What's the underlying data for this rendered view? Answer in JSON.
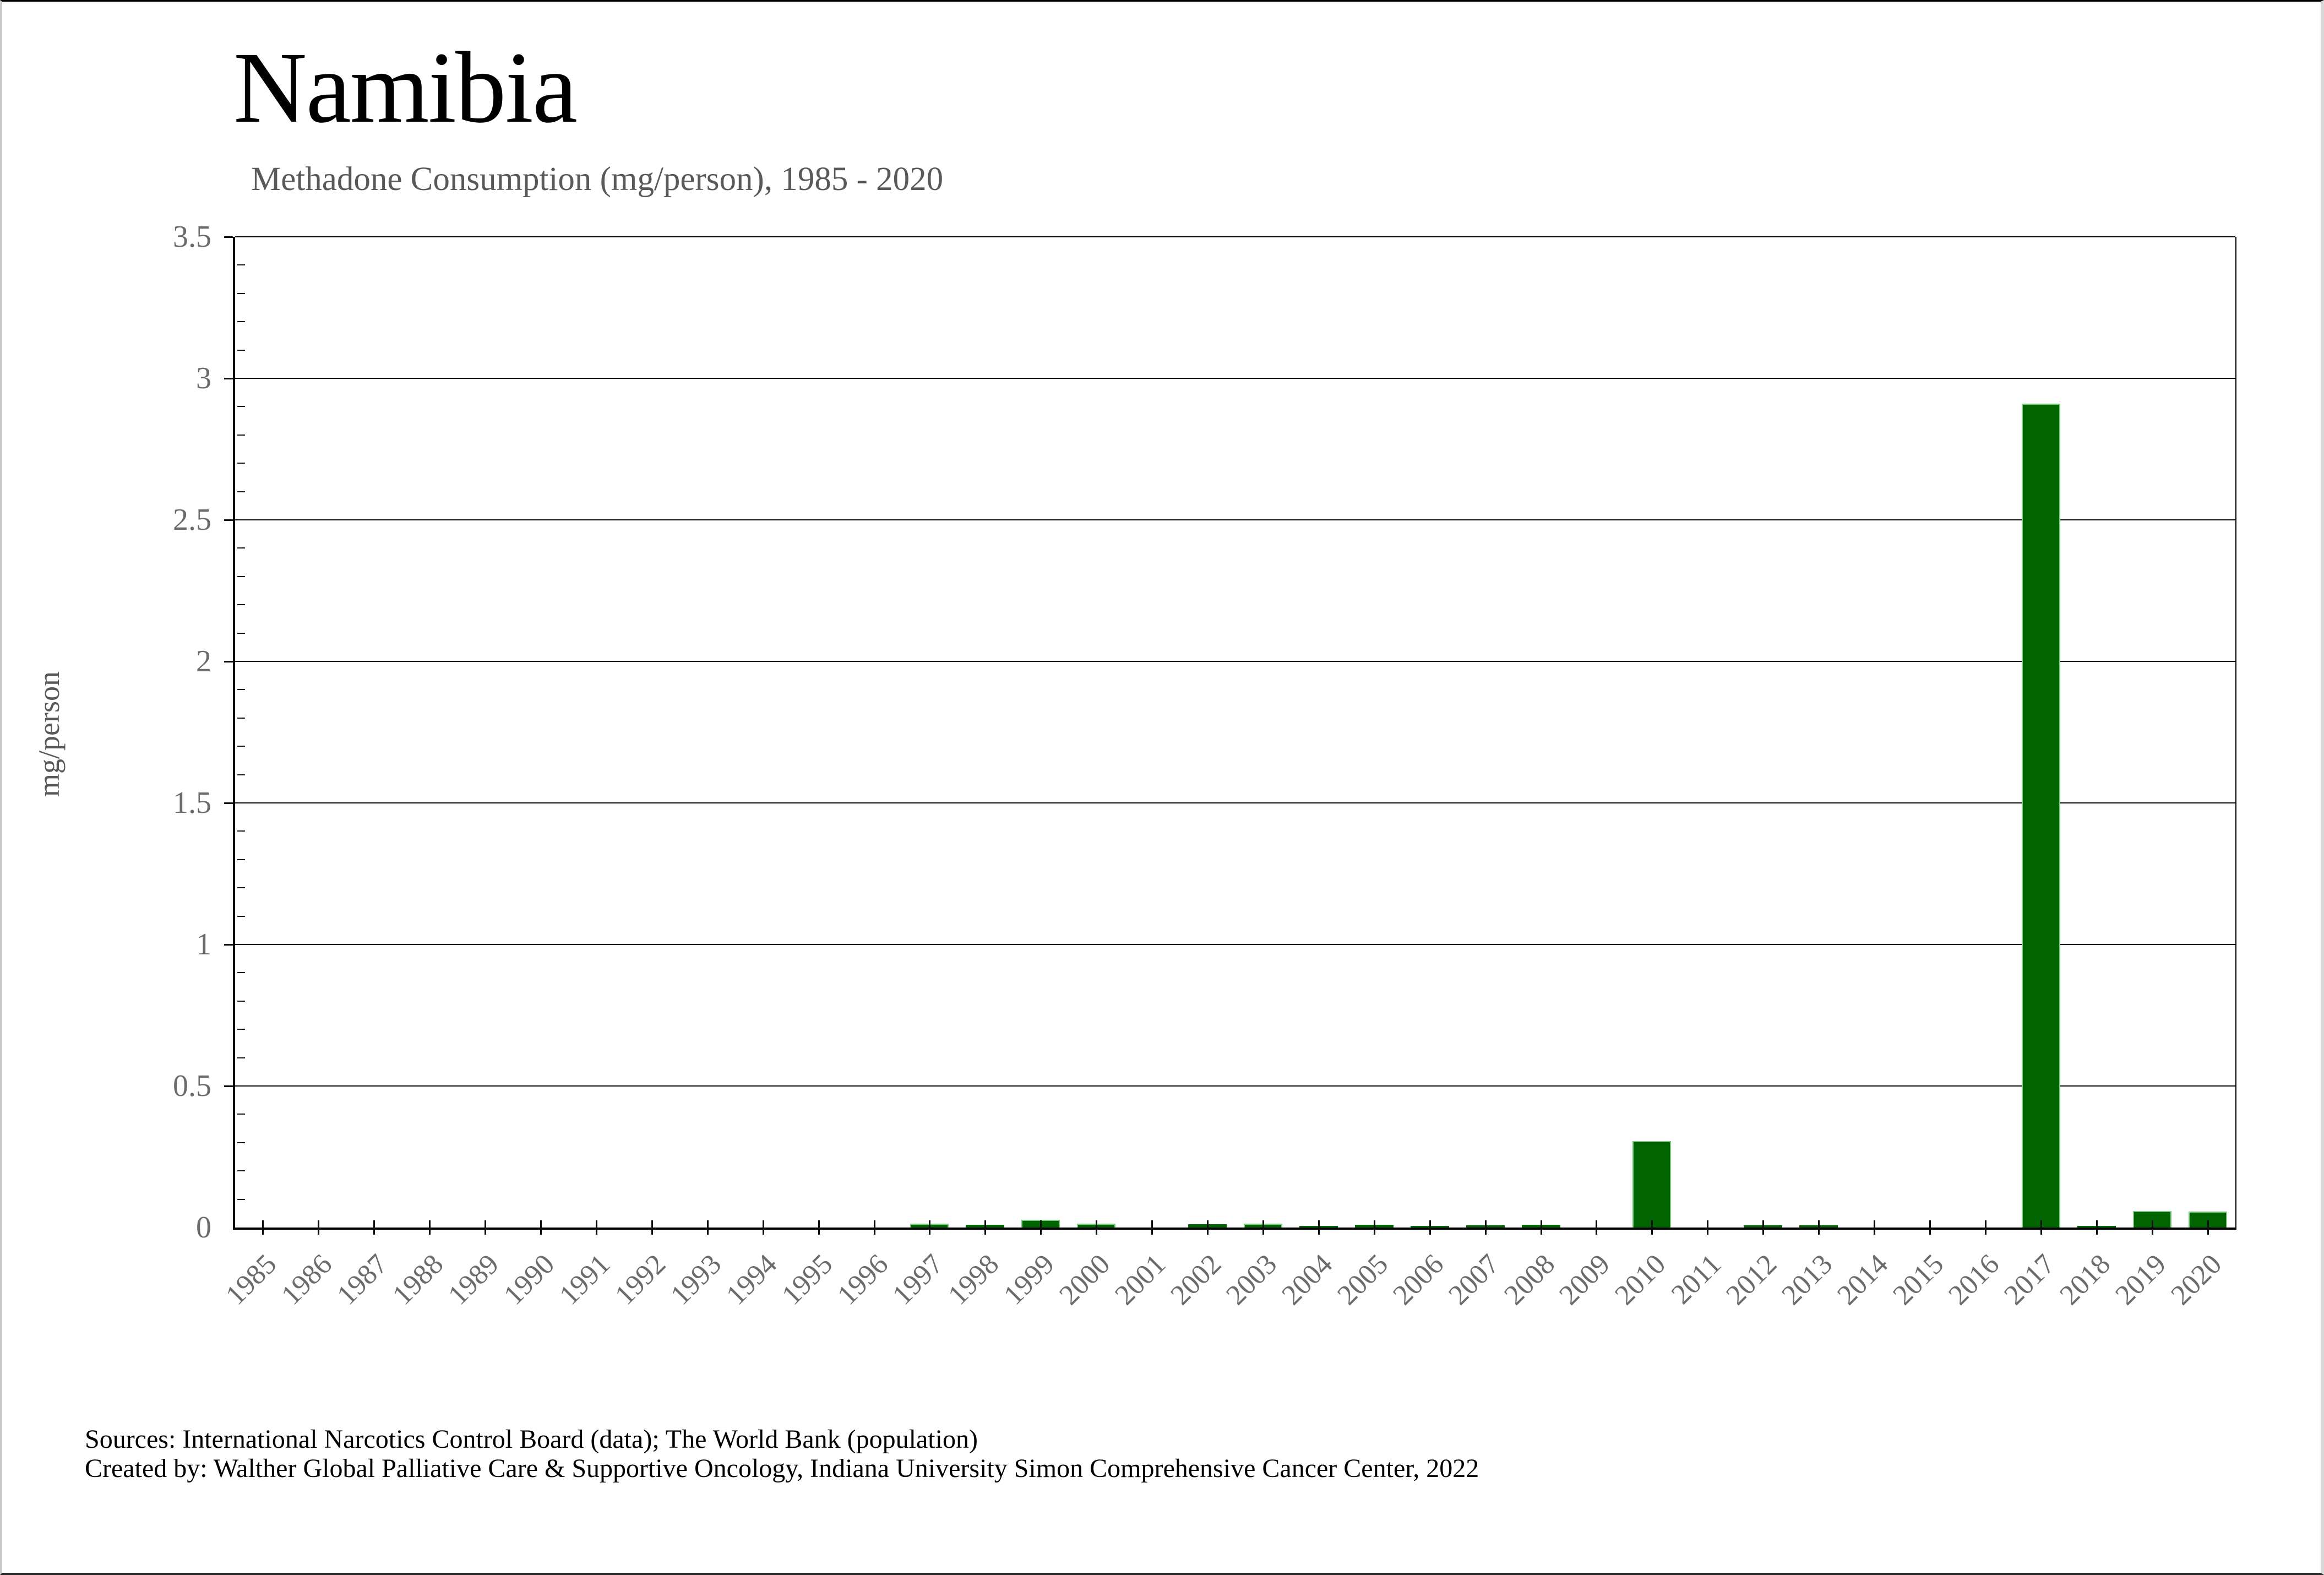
{
  "title": "Namibia",
  "subtitle": "Methadone Consumption (mg/person), 1985 - 2020",
  "y_axis": {
    "label": "mg/person",
    "tick_labels": [
      "0",
      "0.5",
      "1",
      "1.5",
      "2",
      "2.5",
      "3",
      "3.5"
    ],
    "max": 3.5,
    "major_step": 0.5,
    "minor_step": 0.1
  },
  "footer": {
    "line1": "Sources: International Narcotics Control Board (data); The World Bank (population)",
    "line2": "Created by: Walther Global Palliative Care & Supportive Oncology, Indiana University Simon Comprehensive Cancer Center, 2022"
  },
  "colors": {
    "bar_fill": "#006400",
    "bar_edge": "#7fc87f",
    "grid": "#0d0d0d",
    "tick_label": "#6b6b6b",
    "subtitle": "#595959"
  },
  "chart_data": {
    "type": "bar",
    "title": "Namibia — Methadone Consumption (mg/person), 1985 - 2020",
    "xlabel": "",
    "ylabel": "mg/person",
    "ylim": [
      0,
      3.5
    ],
    "grid": "horizontal-major",
    "legend": "none",
    "categories": [
      1985,
      1986,
      1987,
      1988,
      1989,
      1990,
      1991,
      1992,
      1993,
      1994,
      1995,
      1996,
      1997,
      1998,
      1999,
      2000,
      2001,
      2002,
      2003,
      2004,
      2005,
      2006,
      2007,
      2008,
      2009,
      2010,
      2011,
      2012,
      2013,
      2014,
      2015,
      2016,
      2017,
      2018,
      2019,
      2020
    ],
    "values": [
      0,
      0,
      0,
      0,
      0,
      0,
      0,
      0,
      0,
      0,
      0,
      0,
      0.013,
      0.01,
      0.028,
      0.014,
      0,
      0.012,
      0.014,
      0.006,
      0.01,
      0.005,
      0.008,
      0.009,
      0,
      0.305,
      0,
      0.008,
      0.008,
      0,
      0,
      0,
      2.91,
      0.005,
      0.058,
      0.056
    ]
  }
}
